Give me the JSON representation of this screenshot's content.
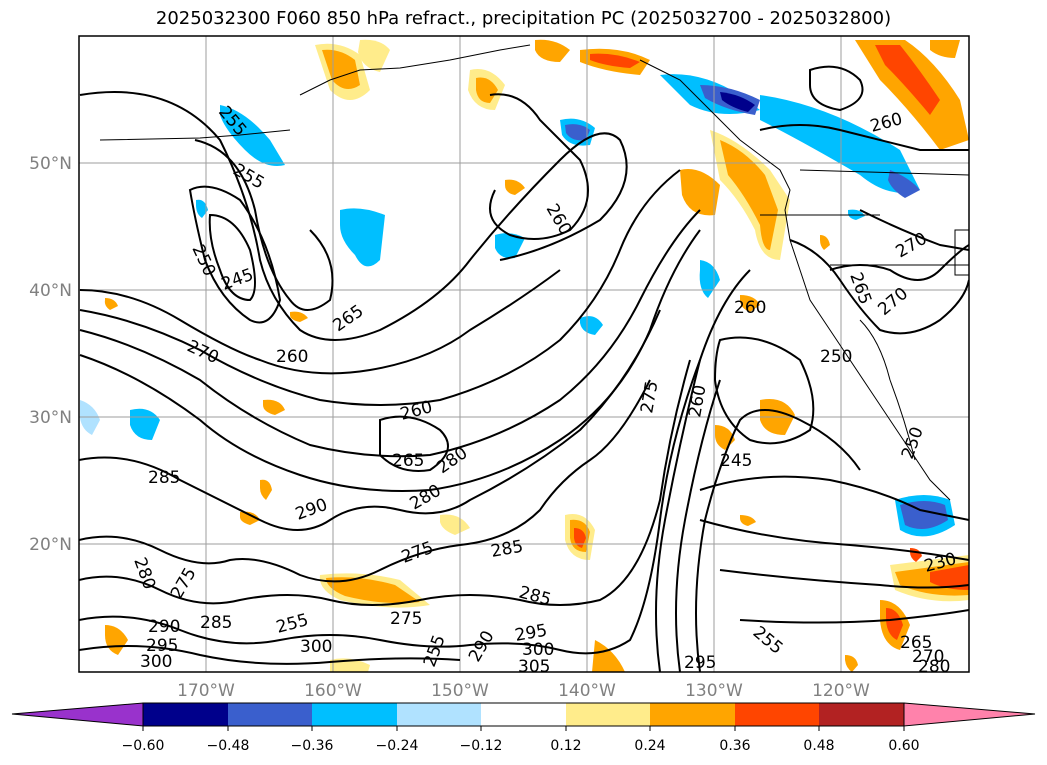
{
  "title": "2025032300 F060 850 hPa refract., precipitation PC (2025032700 - 2025032800)",
  "map": {
    "latitude_labels": [
      "50°N",
      "40°N",
      "30°N",
      "20°N"
    ],
    "longitude_labels": [
      "170°W",
      "160°W",
      "150°W",
      "140°W",
      "130°W",
      "120°W"
    ],
    "contour_labels": [
      "255",
      "255",
      "250",
      "245",
      "265",
      "270",
      "260",
      "260",
      "260",
      "265",
      "280",
      "285",
      "290",
      "280",
      "275",
      "285",
      "280",
      "275",
      "285",
      "290",
      "295",
      "300",
      "285",
      "275",
      "255",
      "300",
      "290",
      "295",
      "300",
      "305",
      "255",
      "295",
      "260",
      "255",
      "275",
      "260",
      "245",
      "260",
      "270",
      "265",
      "270",
      "250",
      "250",
      "230",
      "265",
      "270",
      "280"
    ]
  },
  "colorbar": {
    "ticks": [
      "−0.60",
      "−0.48",
      "−0.36",
      "−0.24",
      "−0.12",
      "0.12",
      "0.24",
      "0.36",
      "0.48",
      "0.60"
    ],
    "colors": [
      "#9932cc",
      "#00008b",
      "#3a5fcd",
      "#00bfff",
      "#b0e2ff",
      "#ffffff",
      "#ffec8b",
      "#ffa500",
      "#ff4500",
      "#b22222",
      "#ff82ab"
    ]
  }
}
